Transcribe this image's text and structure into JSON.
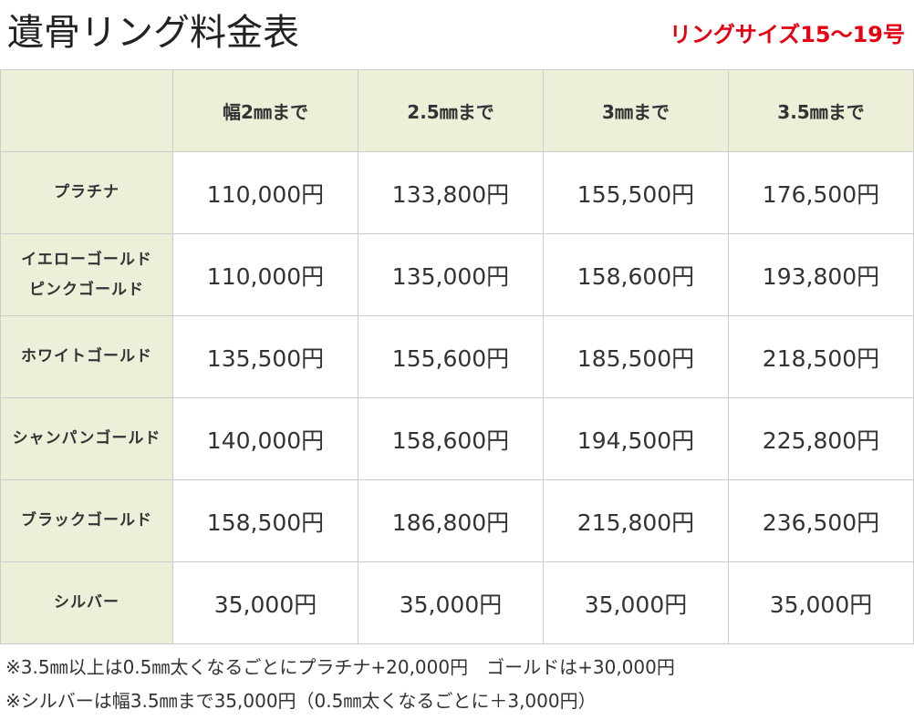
{
  "header": {
    "title": "遺骨リング料金表",
    "size_note": "リングサイズ15〜19号"
  },
  "table": {
    "columns": [
      "",
      "幅2㎜まで",
      "2.5㎜まで",
      "3㎜まで",
      "3.5㎜まで"
    ],
    "rows": [
      {
        "label_lines": [
          "プラチナ"
        ],
        "prices": [
          "110,000円",
          "133,800円",
          "155,500円",
          "176,500円"
        ]
      },
      {
        "label_lines": [
          "イエローゴールド",
          "ピンクゴールド"
        ],
        "prices": [
          "110,000円",
          "135,000円",
          "158,600円",
          "193,800円"
        ]
      },
      {
        "label_lines": [
          "ホワイトゴールド"
        ],
        "prices": [
          "135,500円",
          "155,600円",
          "185,500円",
          "218,500円"
        ]
      },
      {
        "label_lines": [
          "シャンパンゴールド"
        ],
        "prices": [
          "140,000円",
          "158,600円",
          "194,500円",
          "225,800円"
        ]
      },
      {
        "label_lines": [
          "ブラックゴールド"
        ],
        "prices": [
          "158,500円",
          "186,800円",
          "215,800円",
          "236,500円"
        ]
      },
      {
        "label_lines": [
          "シルバー"
        ],
        "prices": [
          "35,000円",
          "35,000円",
          "35,000円",
          "35,000円"
        ]
      }
    ]
  },
  "notes": [
    "※3.5㎜以上は0.5㎜太くなるごとにプラチナ+20,000円　ゴールドは+30,000円",
    "※シルバーは幅3.5㎜まで35,000円（0.5㎜太くなるごとに＋3,000円）"
  ],
  "colors": {
    "accent_red": "#e60012",
    "header_cell_bg": "#eeefd9",
    "border": "#cccccc"
  }
}
